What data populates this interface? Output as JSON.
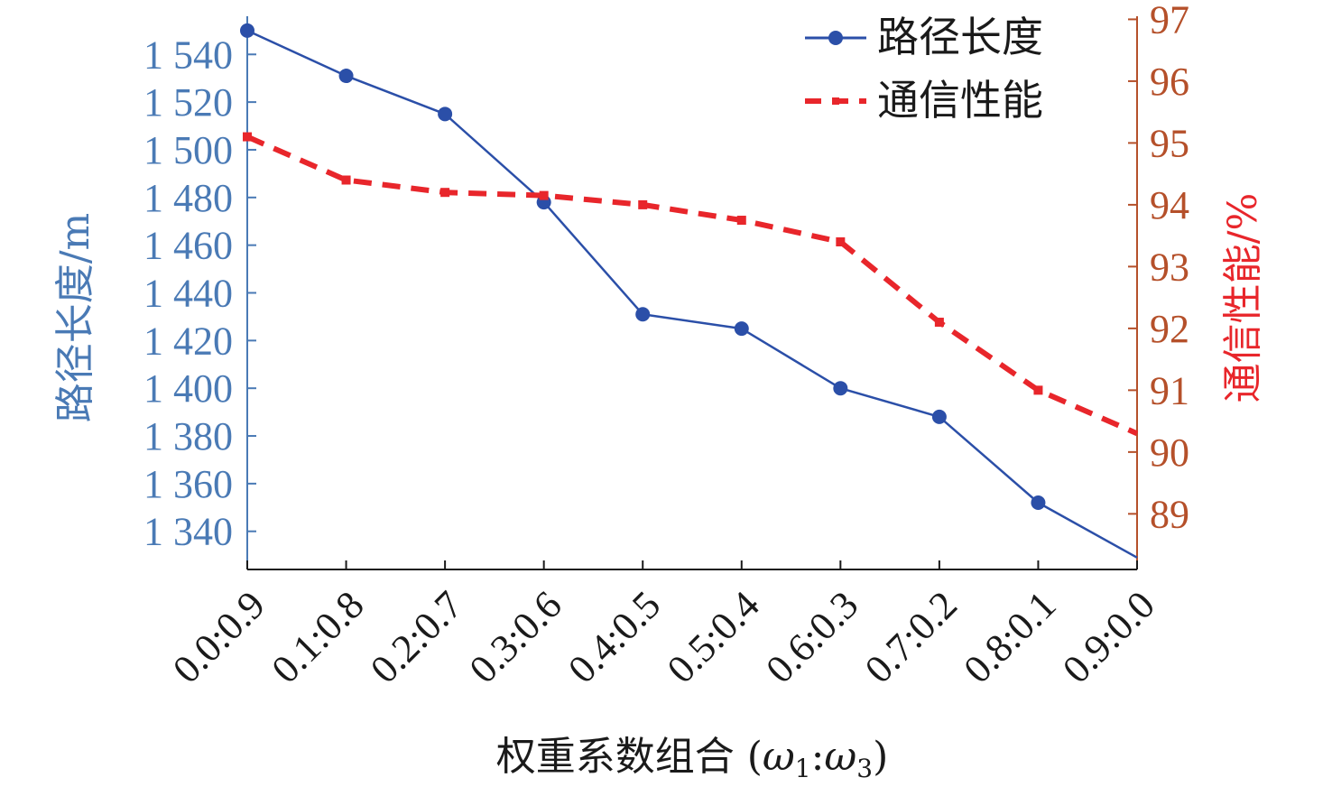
{
  "chart_data": {
    "type": "line",
    "categories": [
      "0.0:0.9",
      "0.1:0.8",
      "0.2:0.7",
      "0.3:0.6",
      "0.4:0.5",
      "0.5:0.4",
      "0.6:0.3",
      "0.7:0.2",
      "0.8:0.1",
      "0.9:0.0"
    ],
    "xlabel": "权重系数组合 (ω1:ω3)",
    "xlabel_parts": {
      "main": "权重系数组合 (",
      "w1": "ω",
      "sub1": "1",
      "sep": ":",
      "w3": "ω",
      "sub3": "3",
      "close": ")"
    },
    "y_left": {
      "label": "路径长度/m",
      "ticks": [
        1340,
        1360,
        1380,
        1400,
        1420,
        1440,
        1460,
        1480,
        1500,
        1520,
        1540
      ],
      "tick_labels": [
        "1 340",
        "1 360",
        "1 380",
        "1 400",
        "1 420",
        "1 440",
        "1 460",
        "1 480",
        "1 500",
        "1 520",
        "1 540"
      ],
      "range": [
        1324,
        1556
      ],
      "color": "#4a7ab5"
    },
    "y_right": {
      "label": "通信性能/%",
      "ticks": [
        89,
        90,
        91,
        92,
        93,
        94,
        95,
        96,
        97
      ],
      "tick_labels": [
        "89",
        "90",
        "91",
        "92",
        "93",
        "94",
        "95",
        "96",
        "97"
      ],
      "range": [
        88.1,
        97.05
      ],
      "color": "#b5502a"
    },
    "series": [
      {
        "name": "路径长度",
        "axis": "left",
        "style": "solid-circle",
        "color": "#2b4fa8",
        "values": [
          1550,
          1531,
          1515,
          1478,
          1431,
          1425,
          1400,
          1388,
          1352,
          1329
        ]
      },
      {
        "name": "通信性能",
        "axis": "right",
        "style": "dashed-square",
        "color": "#e8262b",
        "values": [
          95.1,
          94.4,
          94.2,
          94.15,
          94.0,
          93.75,
          93.4,
          92.1,
          91.0,
          90.3
        ]
      }
    ],
    "legend_position": "top-right",
    "grid": false
  }
}
